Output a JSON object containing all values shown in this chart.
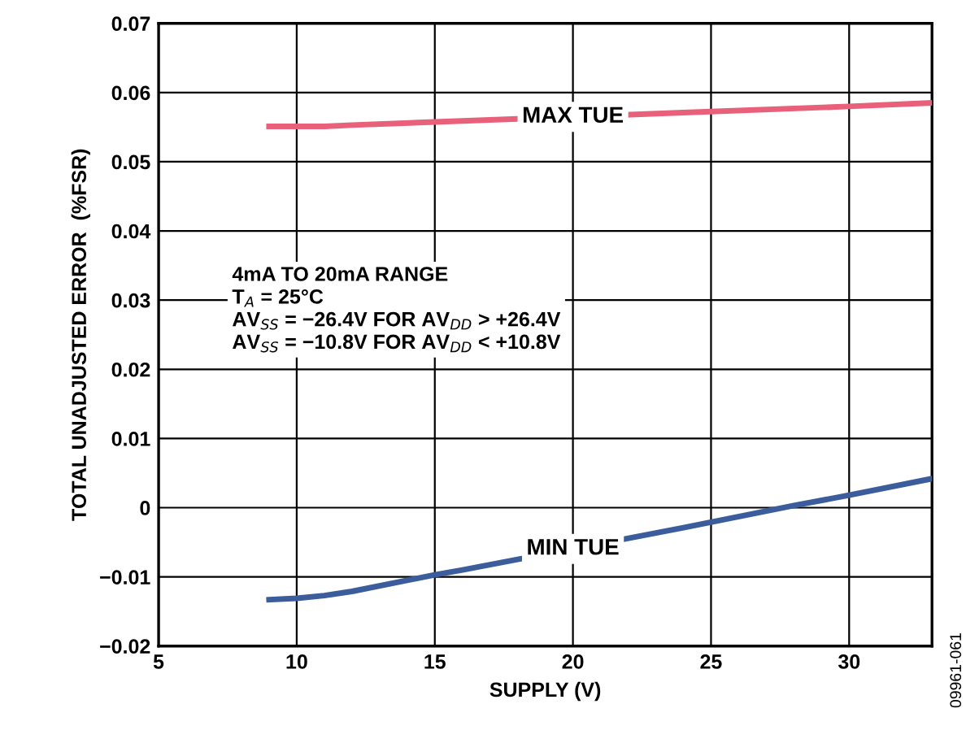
{
  "chart_data": {
    "type": "line",
    "xlabel": "SUPPLY (V)",
    "ylabel": "TOTAL UNADJUSTED ERROR  (%FSR)",
    "series": [
      {
        "name": "MAX TUE",
        "color": "#e8607a",
        "x": [
          9,
          10,
          11,
          12,
          16,
          24,
          30,
          33
        ],
        "values": [
          0.0551,
          0.0551,
          0.0551,
          0.0553,
          0.0559,
          0.0571,
          0.058,
          0.0585
        ]
      },
      {
        "name": "MIN TUE",
        "color": "#3c5d9c",
        "x": [
          9,
          10,
          11,
          12,
          15,
          16,
          24,
          28,
          30,
          33
        ],
        "values": [
          -0.0133,
          -0.0131,
          -0.0127,
          -0.0121,
          -0.0097,
          -0.009,
          -0.0029,
          0.0003,
          0.0018,
          0.0042
        ]
      }
    ],
    "xlim": [
      5,
      33
    ],
    "xticks": [
      5,
      10,
      15,
      20,
      25,
      30
    ],
    "ylim": [
      -0.02,
      0.07
    ],
    "yticks": [
      {
        "value": -0.02,
        "label": "−0.02"
      },
      {
        "value": -0.01,
        "label": "−0.01"
      },
      {
        "value": 0,
        "label": "0"
      },
      0.01,
      0.02,
      0.03,
      0.04,
      0.05,
      0.06,
      0.07
    ],
    "grid": true,
    "legend": false,
    "marker": "none",
    "line_style": "solid",
    "annotations": [
      "4mA TO 20mA RANGE\nT$_{A}$ = 25°C\nAV$_{SS}$ = −26.4V FOR AV$_{DD}$ > +26.4V\nAV$_{SS}$ = −10.8V FOR AV$_{DD}$ < +10.8V",
      "09961-061"
    ]
  }
}
